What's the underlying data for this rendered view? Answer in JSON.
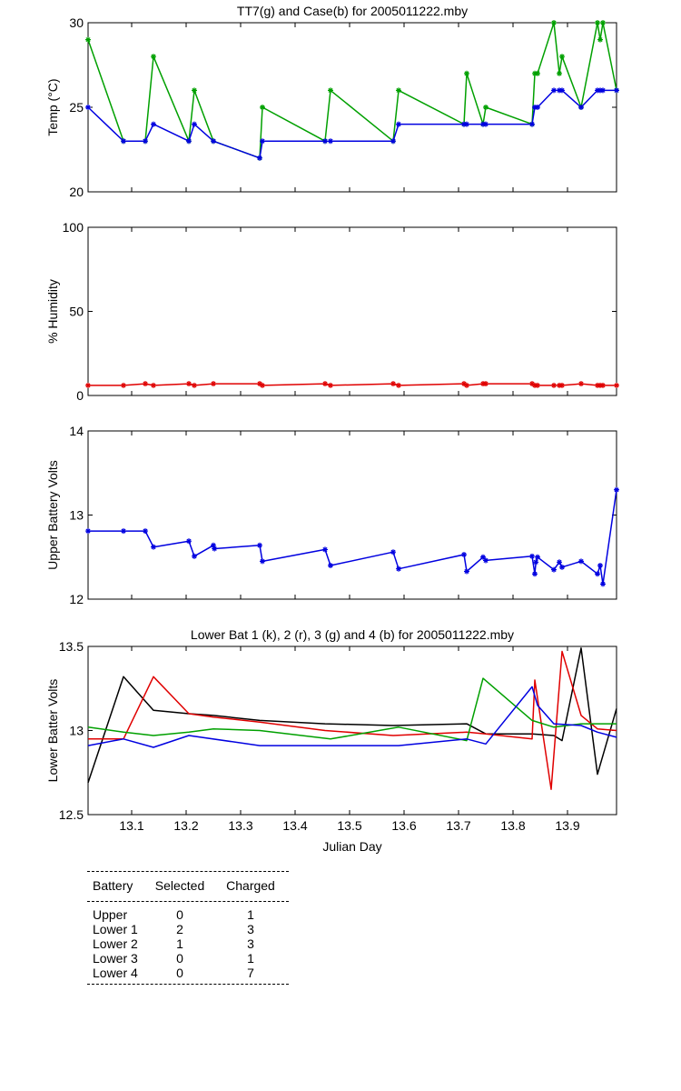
{
  "chart_data": [
    {
      "type": "line",
      "title": "TT7(g) and Case(b) for 2005011222.mby",
      "xlabel": "",
      "ylabel": "Temp  (°C)",
      "xlim": [
        13.02,
        13.99
      ],
      "ylim": [
        20,
        30
      ],
      "yticks": [
        20,
        25,
        30
      ],
      "yticklabels": [
        "20",
        "25",
        "30"
      ],
      "grid": false,
      "series": [
        {
          "color": "#00a000",
          "marker": "star",
          "x": [
            13.02,
            13.085,
            13.125,
            13.14,
            13.205,
            13.215,
            13.25,
            13.335,
            13.34,
            13.455,
            13.465,
            13.58,
            13.59,
            13.71,
            13.715,
            13.745,
            13.75,
            13.835,
            13.84,
            13.845,
            13.875,
            13.885,
            13.89,
            13.925,
            13.955,
            13.96,
            13.965,
            13.99
          ],
          "y": [
            29,
            23,
            23,
            28,
            23,
            26,
            23,
            22,
            25,
            23,
            26,
            23,
            26,
            24,
            27,
            24,
            25,
            24,
            27,
            27,
            30,
            27,
            28,
            25,
            30,
            29,
            30,
            26
          ]
        },
        {
          "color": "#0000e0",
          "marker": "star",
          "x": [
            13.02,
            13.085,
            13.125,
            13.14,
            13.205,
            13.215,
            13.25,
            13.335,
            13.34,
            13.455,
            13.465,
            13.58,
            13.59,
            13.71,
            13.715,
            13.745,
            13.75,
            13.835,
            13.84,
            13.845,
            13.875,
            13.885,
            13.89,
            13.925,
            13.955,
            13.96,
            13.965,
            13.99
          ],
          "y": [
            25,
            23,
            23,
            24,
            23,
            24,
            23,
            22,
            23,
            23,
            23,
            23,
            24,
            24,
            24,
            24,
            24,
            24,
            25,
            25,
            26,
            26,
            26,
            25,
            26,
            26,
            26,
            26
          ]
        }
      ]
    },
    {
      "type": "line",
      "title": "",
      "xlabel": "",
      "ylabel": "% Humidity",
      "xlim": [
        13.02,
        13.99
      ],
      "ylim": [
        0,
        100
      ],
      "yticks": [
        0,
        50,
        100
      ],
      "yticklabels": [
        "0",
        "50",
        "100"
      ],
      "grid": false,
      "series": [
        {
          "color": "#e00000",
          "marker": "star",
          "x": [
            13.02,
            13.085,
            13.125,
            13.14,
            13.205,
            13.215,
            13.25,
            13.335,
            13.34,
            13.455,
            13.465,
            13.58,
            13.59,
            13.71,
            13.715,
            13.745,
            13.75,
            13.835,
            13.84,
            13.845,
            13.875,
            13.885,
            13.89,
            13.925,
            13.955,
            13.96,
            13.965,
            13.99
          ],
          "y": [
            6,
            6,
            7,
            6,
            7,
            6,
            7,
            7,
            6,
            7,
            6,
            7,
            6,
            7,
            6,
            7,
            7,
            7,
            6,
            6,
            6,
            6,
            6,
            7,
            6,
            6,
            6,
            6
          ]
        }
      ]
    },
    {
      "type": "line",
      "title": "",
      "xlabel": "",
      "ylabel": "Upper Battery Volts",
      "xlim": [
        13.02,
        13.99
      ],
      "ylim": [
        12,
        14
      ],
      "yticks": [
        12,
        13,
        14
      ],
      "yticklabels": [
        "12",
        "13",
        "14"
      ],
      "grid": false,
      "series": [
        {
          "color": "#0000e0",
          "marker": "star",
          "x": [
            13.02,
            13.085,
            13.125,
            13.14,
            13.205,
            13.215,
            13.25,
            13.252,
            13.335,
            13.34,
            13.455,
            13.465,
            13.58,
            13.59,
            13.71,
            13.715,
            13.745,
            13.75,
            13.835,
            13.84,
            13.842,
            13.845,
            13.875,
            13.885,
            13.89,
            13.925,
            13.955,
            13.96,
            13.965,
            13.99
          ],
          "y": [
            12.81,
            12.81,
            12.81,
            12.62,
            12.69,
            12.51,
            12.64,
            12.6,
            12.64,
            12.45,
            12.59,
            12.4,
            12.56,
            12.36,
            12.53,
            12.33,
            12.5,
            12.46,
            12.51,
            12.3,
            12.44,
            12.5,
            12.35,
            12.44,
            12.38,
            12.45,
            12.3,
            12.4,
            12.18,
            13.3
          ]
        }
      ]
    },
    {
      "type": "line",
      "title": "Lower Bat 1 (k), 2 (r), 3 (g) and 4 (b) for 2005011222.mby",
      "xlabel": "Julian Day",
      "ylabel": "Lower Batter Volts",
      "xlim": [
        13.02,
        13.99
      ],
      "ylim": [
        12.5,
        13.5
      ],
      "yticks": [
        12.5,
        13,
        13.5
      ],
      "yticklabels": [
        "12.5",
        "13",
        "13.5"
      ],
      "xticks": [
        13.1,
        13.2,
        13.3,
        13.4,
        13.5,
        13.6,
        13.7,
        13.8,
        13.9
      ],
      "xticklabels": [
        "13.1",
        "13.2",
        "13.3",
        "13.4",
        "13.5",
        "13.6",
        "13.7",
        "13.8",
        "13.9"
      ],
      "grid": false,
      "series": [
        {
          "color": "#000000",
          "x": [
            13.02,
            13.085,
            13.14,
            13.205,
            13.25,
            13.335,
            13.455,
            13.58,
            13.715,
            13.75,
            13.835,
            13.875,
            13.89,
            13.925,
            13.955,
            13.99
          ],
          "y": [
            12.69,
            13.32,
            13.12,
            13.1,
            13.09,
            13.06,
            13.04,
            13.03,
            13.04,
            12.98,
            12.98,
            12.97,
            12.94,
            13.49,
            12.74,
            13.13
          ]
        },
        {
          "color": "#e00000",
          "x": [
            13.02,
            13.085,
            13.14,
            13.205,
            13.25,
            13.335,
            13.455,
            13.58,
            13.715,
            13.75,
            13.835,
            13.84,
            13.87,
            13.89,
            13.925,
            13.955,
            13.99
          ],
          "y": [
            12.95,
            12.95,
            13.32,
            13.1,
            13.08,
            13.05,
            13.0,
            12.97,
            12.99,
            12.98,
            12.95,
            13.3,
            12.65,
            13.47,
            13.09,
            13.01,
            13.0
          ]
        },
        {
          "color": "#00a000",
          "x": [
            13.02,
            13.085,
            13.14,
            13.205,
            13.25,
            13.335,
            13.465,
            13.59,
            13.715,
            13.745,
            13.835,
            13.875,
            13.925,
            13.99
          ],
          "y": [
            13.02,
            12.99,
            12.97,
            12.99,
            13.01,
            13.0,
            12.95,
            13.02,
            12.94,
            13.31,
            13.06,
            13.02,
            13.04,
            13.04
          ]
        },
        {
          "color": "#0000e0",
          "x": [
            13.02,
            13.085,
            13.14,
            13.205,
            13.335,
            13.465,
            13.59,
            13.715,
            13.75,
            13.835,
            13.845,
            13.875,
            13.925,
            13.955,
            13.99
          ],
          "y": [
            12.91,
            12.95,
            12.9,
            12.97,
            12.91,
            12.91,
            12.91,
            12.95,
            12.92,
            13.26,
            13.15,
            13.04,
            13.03,
            12.99,
            12.96
          ]
        }
      ]
    }
  ],
  "battery_table": {
    "headers": [
      "Battery",
      "Selected",
      "Charged"
    ],
    "rows": [
      [
        "Upper",
        "0",
        "1"
      ],
      [
        "Lower 1",
        "2",
        "3"
      ],
      [
        "Lower 2",
        "1",
        "3"
      ],
      [
        "Lower 3",
        "0",
        "1"
      ],
      [
        "Lower 4",
        "0",
        "7"
      ]
    ]
  }
}
